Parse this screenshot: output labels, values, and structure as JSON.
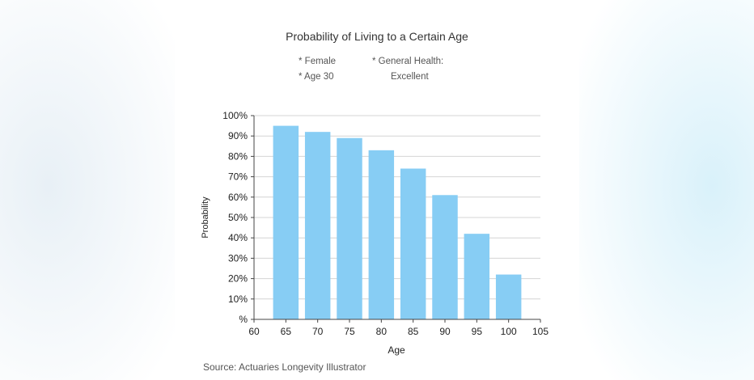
{
  "chart_data": {
    "type": "bar",
    "title": "Probability of Living to a Certain Age",
    "notes": [
      "* Female",
      "* Age 30",
      "* General Health:",
      "Excellent"
    ],
    "xlabel": "Age",
    "ylabel": "Probability",
    "categories": [
      65,
      70,
      75,
      80,
      85,
      90,
      95,
      100
    ],
    "values": [
      95,
      92,
      89,
      83,
      74,
      61,
      42,
      22
    ],
    "xlim": [
      60,
      105
    ],
    "xticks": [
      "60",
      "65",
      "70",
      "75",
      "80",
      "85",
      "90",
      "95",
      "100",
      "105"
    ],
    "ylim": [
      0,
      100
    ],
    "yticks": [
      "%",
      "10%",
      "20%",
      "30%",
      "40%",
      "50%",
      "60%",
      "70%",
      "80%",
      "90%",
      "100%"
    ],
    "grid": true,
    "bar_color": "#87cdf4",
    "source": "Source:  Actuaries Longevity Illustrator"
  }
}
